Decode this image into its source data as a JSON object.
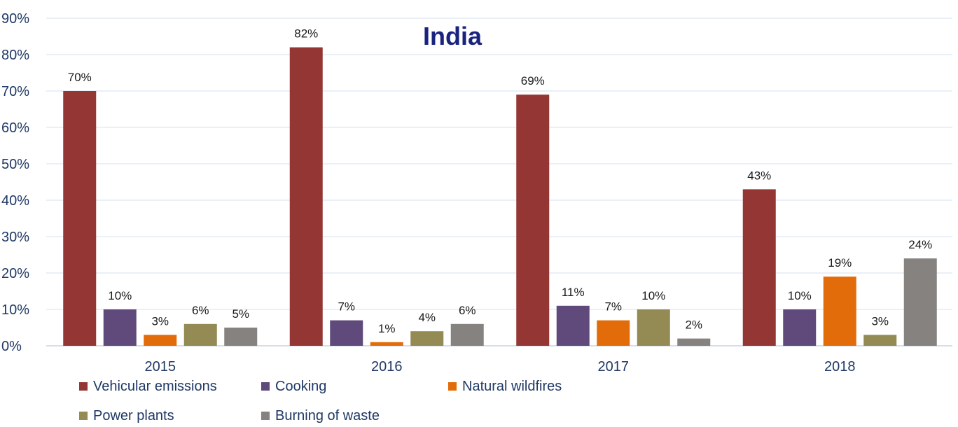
{
  "chart_data": {
    "type": "bar",
    "title": "India",
    "categories": [
      "2015",
      "2016",
      "2017",
      "2018"
    ],
    "series": [
      {
        "name": "Vehicular emissions",
        "color": "#943634",
        "values": [
          70,
          82,
          69,
          43
        ],
        "labels": [
          "70%",
          "82%",
          "69%",
          "43%"
        ]
      },
      {
        "name": "Cooking",
        "color": "#604a7b",
        "values": [
          10,
          7,
          11,
          10
        ],
        "labels": [
          "10%",
          "7%",
          "11%",
          "10%"
        ]
      },
      {
        "name": "Natural wildfires",
        "color": "#e36c0a",
        "values": [
          3,
          1,
          7,
          19
        ],
        "labels": [
          "3%",
          "1%",
          "7%",
          "19%"
        ]
      },
      {
        "name": "Power plants",
        "color": "#948a54",
        "values": [
          6,
          4,
          10,
          3
        ],
        "labels": [
          "6%",
          "4%",
          "10%",
          "3%"
        ]
      },
      {
        "name": "Burning of waste",
        "color": "#858280",
        "values": [
          5,
          6,
          2,
          24
        ],
        "labels": [
          "5%",
          "6%",
          "2%",
          "24%"
        ]
      }
    ],
    "ylim": [
      0,
      90
    ],
    "yticks": [
      0,
      10,
      20,
      30,
      40,
      50,
      60,
      70,
      80,
      90
    ],
    "ytick_labels": [
      "0%",
      "10%",
      "20%",
      "30%",
      "40%",
      "50%",
      "60%",
      "70%",
      "80%",
      "90%"
    ],
    "grid": true,
    "legend_position": "bottom-left"
  }
}
